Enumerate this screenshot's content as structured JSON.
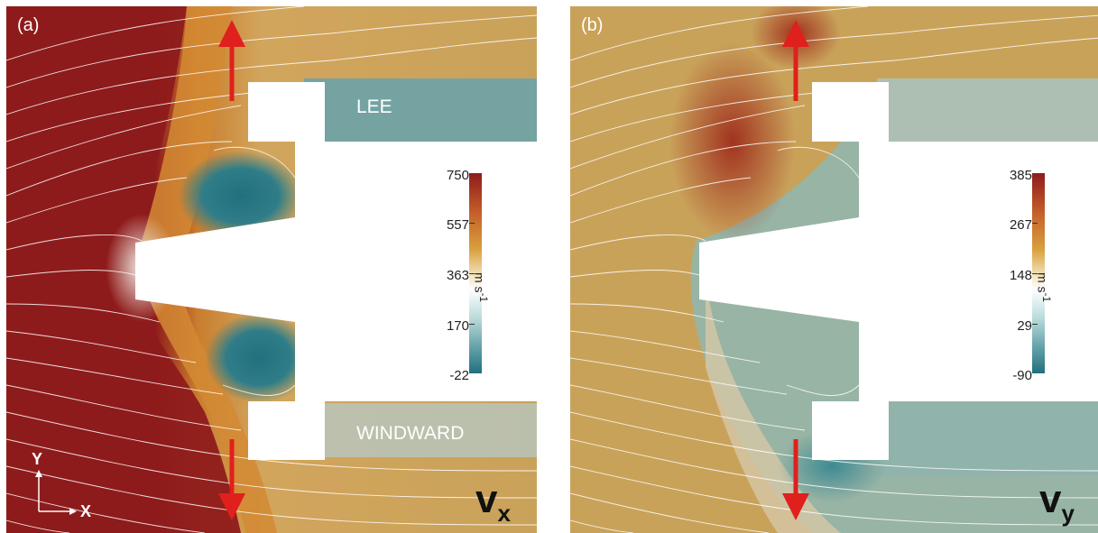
{
  "panels": [
    {
      "label": "(a)",
      "region_lee": "LEE",
      "region_windward": "WINDWARD",
      "variable": "v",
      "variable_sub": "x",
      "colorbar_ticks": [
        "750",
        "557",
        "363",
        "170",
        "-22"
      ],
      "unit": "m s",
      "unit_sup": "-1",
      "axis_x": "X",
      "axis_y": "Y"
    },
    {
      "label": "(b)",
      "variable": "v",
      "variable_sub": "y",
      "colorbar_ticks": [
        "385",
        "267",
        "148",
        "29",
        "-90"
      ],
      "unit": "m s",
      "unit_sup": "-1"
    }
  ],
  "colors": {
    "dark_red": "#8e1b1b",
    "orange": "#c97d2e",
    "tan": "#c9a25a",
    "teal_dark": "#21707e",
    "teal_light": "#8dbdbd",
    "arrow": "#e0201c",
    "white": "#ffffff"
  }
}
